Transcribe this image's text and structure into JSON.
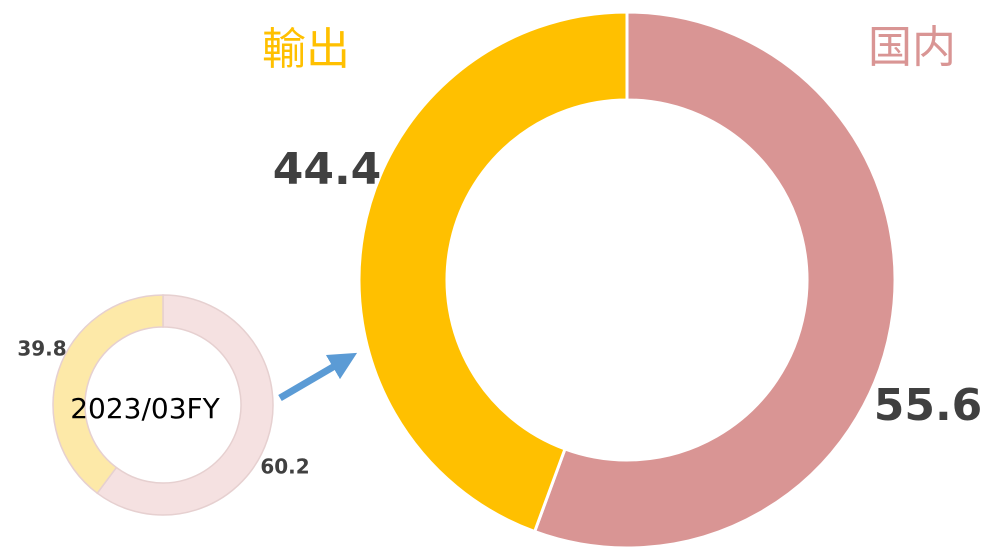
{
  "chart_data": [
    {
      "type": "donut",
      "categories": [
        "国内",
        "輸出"
      ],
      "values": [
        55.6,
        44.4
      ],
      "colors": [
        "#D99594",
        "#FFC000"
      ]
    },
    {
      "type": "donut",
      "label": "2023/03FY",
      "values": [
        60.2,
        39.8
      ],
      "colors": [
        "#F5E1E1",
        "#FDE9A8"
      ]
    }
  ]
}
